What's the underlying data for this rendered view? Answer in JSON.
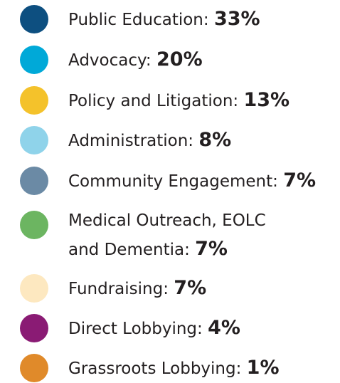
{
  "items": [
    {
      "label": "Public Education:",
      "value": "33%",
      "color": "#0d4f80"
    },
    {
      "label": "Advocacy:",
      "value": "20%",
      "color": "#00a9d8"
    },
    {
      "label": "Policy and Litigation:",
      "value": "13%",
      "color": "#f4c22b"
    },
    {
      "label": "Administration:",
      "value": "8%",
      "color": "#8fd3ea"
    },
    {
      "label": "Community Engagement:",
      "value": "7%",
      "color": "#6b8aa5"
    },
    {
      "label": "Medical Outreach, EOLC and Dementia:",
      "value": "7%",
      "color": "#6cb561"
    },
    {
      "label": "Fundraising:",
      "value": "7%",
      "color": "#fde8c0"
    },
    {
      "label": "Direct Lobbying:",
      "value": "4%",
      "color": "#8a1b74"
    },
    {
      "label": "Grassroots Lobbying:",
      "value": "1%",
      "color": "#e08a2a"
    }
  ]
}
